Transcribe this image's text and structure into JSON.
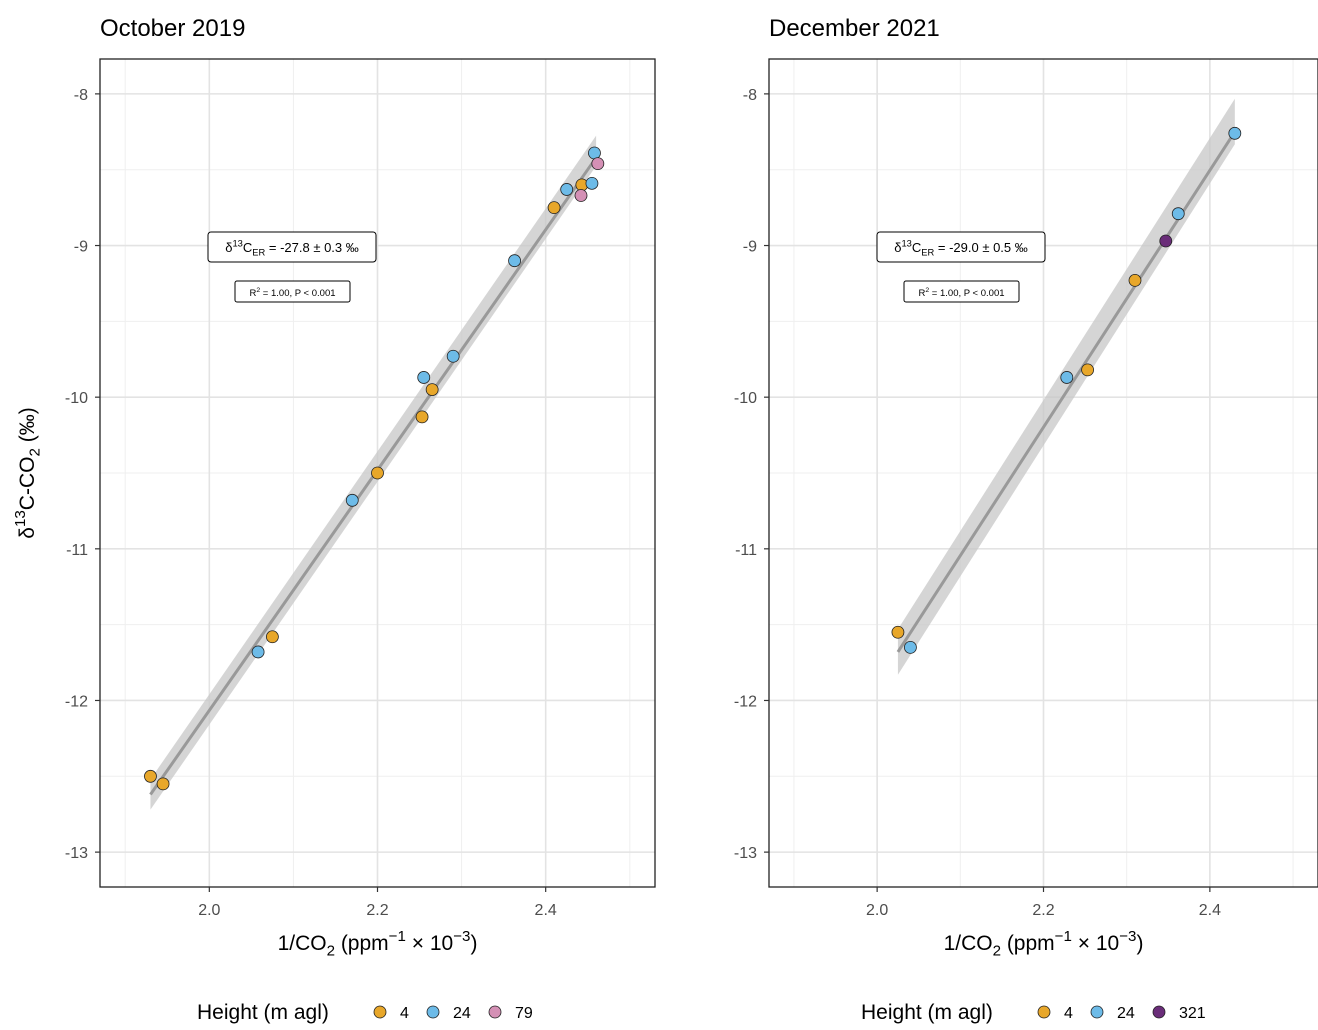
{
  "chart_data": [
    {
      "type": "scatter",
      "title": "October 2019",
      "xlabel": "1/CO2 (ppm-1 × 10-3)",
      "ylabel": "δ13C-CO2 (‰)",
      "xlim": [
        1.87,
        2.53
      ],
      "ylim": [
        -13.23,
        -7.77
      ],
      "x_ticks": [
        2.0,
        2.2,
        2.4
      ],
      "x_tick_labels": [
        "2.0",
        "2.2",
        "2.4"
      ],
      "y_ticks": [
        -8,
        -9,
        -10,
        -11,
        -12,
        -13
      ],
      "y_tick_labels": [
        "-8",
        "-9",
        "-10",
        "-11",
        "-12",
        "-13"
      ],
      "grid": true,
      "annotation_main": "δ13CER = -27.8 ± 0.3 ‰",
      "annotation_stats": "R² = 1.00, P < 0.001",
      "fit_line": {
        "x": [
          1.93,
          2.46
        ],
        "y": [
          -12.62,
          -8.42
        ],
        "band_halfwidth": 0.1
      },
      "legend": {
        "title": "Height (m agl)",
        "position": "bottom",
        "entries": [
          {
            "label": "4",
            "color": "#E8A72A"
          },
          {
            "label": "24",
            "color": "#6DBBE8"
          },
          {
            "label": "79",
            "color": "#D490B5"
          }
        ]
      },
      "series": [
        {
          "name": "4",
          "color": "#E8A72A",
          "points": [
            {
              "x": 1.93,
              "y": -12.5
            },
            {
              "x": 1.945,
              "y": -12.55
            },
            {
              "x": 2.075,
              "y": -11.58
            },
            {
              "x": 2.2,
              "y": -10.5
            },
            {
              "x": 2.253,
              "y": -10.13
            },
            {
              "x": 2.265,
              "y": -9.95
            },
            {
              "x": 2.41,
              "y": -8.75
            },
            {
              "x": 2.443,
              "y": -8.6
            }
          ]
        },
        {
          "name": "24",
          "color": "#6DBBE8",
          "points": [
            {
              "x": 2.058,
              "y": -11.68
            },
            {
              "x": 2.17,
              "y": -10.68
            },
            {
              "x": 2.255,
              "y": -9.87
            },
            {
              "x": 2.29,
              "y": -9.73
            },
            {
              "x": 2.363,
              "y": -9.1
            },
            {
              "x": 2.425,
              "y": -8.63
            },
            {
              "x": 2.455,
              "y": -8.59
            },
            {
              "x": 2.458,
              "y": -8.39
            }
          ]
        },
        {
          "name": "79",
          "color": "#D490B5",
          "points": [
            {
              "x": 2.442,
              "y": -8.67
            },
            {
              "x": 2.462,
              "y": -8.46
            }
          ]
        }
      ]
    },
    {
      "type": "scatter",
      "title": "December 2021",
      "xlabel": "1/CO2 (ppm-1 × 10-3)",
      "ylabel": "",
      "xlim": [
        1.87,
        2.53
      ],
      "ylim": [
        -13.23,
        -7.77
      ],
      "x_ticks": [
        2.0,
        2.2,
        2.4
      ],
      "x_tick_labels": [
        "2.0",
        "2.2",
        "2.4"
      ],
      "y_ticks": [
        -8,
        -9,
        -10,
        -11,
        -12,
        -13
      ],
      "y_tick_labels": [
        "-8",
        "-9",
        "-10",
        "-11",
        "-12",
        "-13"
      ],
      "grid": true,
      "annotation_main": "δ13CER = -29.0 ± 0.5 ‰",
      "annotation_stats": "R² = 1.00, P < 0.001",
      "fit_line": {
        "x": [
          2.025,
          2.43
        ],
        "y": [
          -11.68,
          -8.25
        ],
        "band_halfwidth": 0.15
      },
      "legend": {
        "title": "Height (m agl)",
        "position": "bottom",
        "entries": [
          {
            "label": "4",
            "color": "#E8A72A"
          },
          {
            "label": "24",
            "color": "#6DBBE8"
          },
          {
            "label": "321",
            "color": "#6A2D79"
          }
        ]
      },
      "series": [
        {
          "name": "4",
          "color": "#E8A72A",
          "points": [
            {
              "x": 2.025,
              "y": -11.55
            },
            {
              "x": 2.253,
              "y": -9.82
            },
            {
              "x": 2.31,
              "y": -9.23
            }
          ]
        },
        {
          "name": "24",
          "color": "#6DBBE8",
          "points": [
            {
              "x": 2.04,
              "y": -11.65
            },
            {
              "x": 2.228,
              "y": -9.87
            },
            {
              "x": 2.362,
              "y": -8.79
            },
            {
              "x": 2.43,
              "y": -8.26
            }
          ]
        },
        {
          "name": "321",
          "color": "#6A2D79",
          "points": [
            {
              "x": 2.347,
              "y": -8.97
            }
          ]
        }
      ]
    }
  ]
}
